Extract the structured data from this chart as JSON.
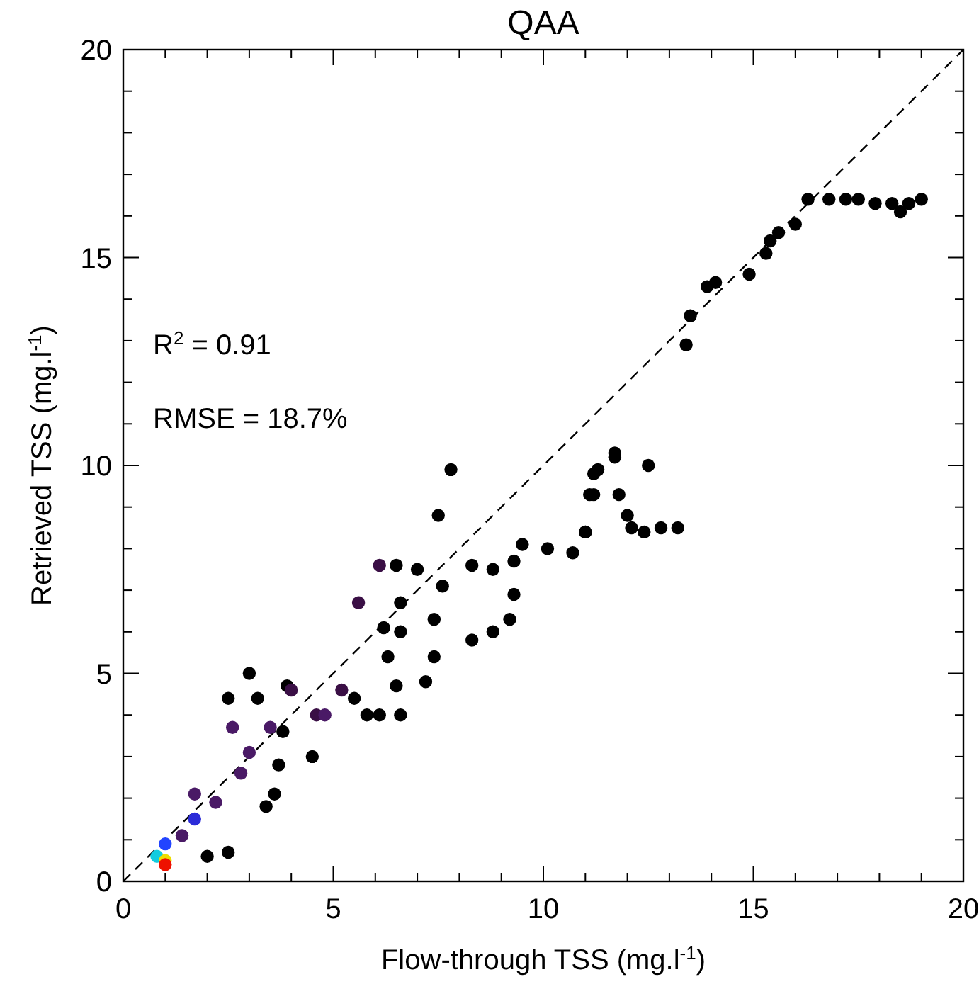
{
  "chart_data": {
    "type": "scatter",
    "title": "QAA",
    "xlabel": "Flow-through TSS (mg.l$^{-1}$)",
    "ylabel": "Retrieved TSS (mg.l$^{-1}$)",
    "annotations": [
      "R$^{2}$ = 0.91",
      "RMSE = 18.7%"
    ],
    "xlim": [
      0,
      20
    ],
    "ylim": [
      0,
      20
    ],
    "xticks": [
      0,
      {
        "value": 1,
        "label": null
      },
      {
        "value": 2,
        "label": null
      },
      {
        "value": 3,
        "label": null
      },
      {
        "value": 4,
        "label": null
      },
      5,
      {
        "value": 6,
        "label": null
      },
      {
        "value": 7,
        "label": null
      },
      {
        "value": 8,
        "label": null
      },
      {
        "value": 9,
        "label": null
      },
      10,
      {
        "value": 11,
        "label": null
      },
      {
        "value": 12,
        "label": null
      },
      {
        "value": 13,
        "label": null
      },
      {
        "value": 14,
        "label": null
      },
      15,
      {
        "value": 16,
        "label": null
      },
      {
        "value": 17,
        "label": null
      },
      {
        "value": 18,
        "label": null
      },
      {
        "value": 19,
        "label": null
      },
      20
    ],
    "yticks": [
      0,
      {
        "value": 1,
        "label": null
      },
      {
        "value": 2,
        "label": null
      },
      {
        "value": 3,
        "label": null
      },
      {
        "value": 4,
        "label": null
      },
      5,
      {
        "value": 6,
        "label": null
      },
      {
        "value": 7,
        "label": null
      },
      {
        "value": 8,
        "label": null
      },
      {
        "value": 9,
        "label": null
      },
      10,
      {
        "value": 11,
        "label": null
      },
      {
        "value": 12,
        "label": null
      },
      {
        "value": 13,
        "label": null
      },
      {
        "value": 14,
        "label": null
      },
      15,
      {
        "value": 16,
        "label": null
      },
      {
        "value": 17,
        "label": null
      },
      {
        "value": 18,
        "label": null
      },
      {
        "value": 19,
        "label": null
      },
      20
    ],
    "grid": false,
    "legend": false,
    "marker": "circle",
    "series": [
      {
        "x": [
          16.3,
          16.8,
          17.2,
          17.5,
          17.9,
          18.3,
          18.5,
          18.7,
          19.0,
          16.0,
          15.6,
          15.4,
          15.3,
          14.9,
          14.1,
          13.9,
          13.5,
          13.4,
          11.7,
          11.3,
          12.5,
          11.1,
          11.8,
          12.0,
          12.4,
          12.8,
          13.2,
          11.0,
          7.8,
          7.5,
          11.7,
          11.2,
          11.2,
          12.1,
          11.0,
          10.7,
          10.1,
          9.5,
          9.3,
          8.8,
          8.3,
          9.2,
          9.3,
          8.8,
          8.3,
          7.6,
          7.4,
          6.6,
          6.6,
          6.2,
          7.0,
          6.5,
          6.3,
          7.4,
          7.2,
          6.5,
          6.6,
          6.1,
          5.5,
          3.8,
          3.0,
          2.5,
          3.2,
          3.9,
          3.6,
          3.4,
          2.5,
          2.0,
          5.8,
          4.5,
          3.7,
          6.1,
          5.6,
          5.2,
          4.0,
          4.6,
          4.8,
          2.6,
          3.0,
          3.5,
          1.7,
          2.2,
          2.8,
          1.4,
          1.7,
          1.0,
          0.8,
          1.0,
          1.0
        ],
        "values": [
          16.4,
          16.4,
          16.4,
          16.4,
          16.3,
          16.3,
          16.1,
          16.3,
          16.4,
          15.8,
          15.6,
          15.4,
          15.1,
          14.6,
          14.4,
          14.3,
          13.6,
          12.9,
          10.3,
          9.9,
          10.0,
          9.3,
          9.3,
          8.8,
          8.4,
          8.5,
          8.5,
          8.4,
          9.9,
          8.8,
          10.2,
          9.8,
          9.3,
          8.5,
          8.4,
          7.9,
          8.0,
          8.1,
          7.7,
          7.5,
          7.6,
          6.3,
          6.9,
          6.0,
          5.8,
          7.1,
          6.3,
          6.7,
          6.0,
          6.1,
          7.5,
          7.6,
          5.4,
          5.4,
          4.8,
          4.7,
          4.0,
          4.0,
          4.4,
          3.6,
          5.0,
          4.4,
          4.4,
          4.7,
          2.1,
          1.8,
          0.7,
          0.6,
          4.0,
          3.0,
          2.8,
          7.6,
          6.7,
          4.6,
          4.6,
          4.0,
          4.0,
          3.7,
          3.1,
          3.7,
          2.1,
          1.9,
          2.6,
          1.1,
          1.5,
          0.9,
          0.6,
          0.5,
          0.4
        ],
        "colors": [
          "#000000",
          "#000000",
          "#000000",
          "#000000",
          "#000000",
          "#000000",
          "#000000",
          "#000000",
          "#000000",
          "#000000",
          "#000000",
          "#000000",
          "#000000",
          "#000000",
          "#000000",
          "#000000",
          "#000000",
          "#000000",
          "#000000",
          "#000000",
          "#000000",
          "#000000",
          "#000000",
          "#000000",
          "#000000",
          "#000000",
          "#000000",
          "#000000",
          "#000000",
          "#000000",
          "#000000",
          "#000000",
          "#000000",
          "#000000",
          "#000000",
          "#000000",
          "#000000",
          "#000000",
          "#000000",
          "#000000",
          "#000000",
          "#000000",
          "#000000",
          "#000000",
          "#000000",
          "#000000",
          "#000000",
          "#000000",
          "#000000",
          "#000000",
          "#000000",
          "#000000",
          "#000000",
          "#000000",
          "#000000",
          "#000000",
          "#000000",
          "#000000",
          "#000000",
          "#000000",
          "#000000",
          "#000000",
          "#000000",
          "#000000",
          "#000000",
          "#000000",
          "#000000",
          "#000000",
          "#000000",
          "#000000",
          "#000000",
          "#3a0f45",
          "#3a0f45",
          "#3a0f45",
          "#3a0f45",
          "#3a0f45",
          "#4a1a66",
          "#4a1a66",
          "#4a1a66",
          "#4a1a66",
          "#4a1a66",
          "#4a1a66",
          "#4a1a66",
          "#4a1a66",
          "#2b2bd8",
          "#2244ff",
          "#11cce0",
          "#eedd00",
          "#ee1100"
        ]
      },
      {
        "type": "line",
        "x": [
          0,
          20
        ],
        "values": [
          0,
          20
        ],
        "color": "#000000",
        "line_style": "dashed",
        "marker": "none"
      }
    ]
  }
}
